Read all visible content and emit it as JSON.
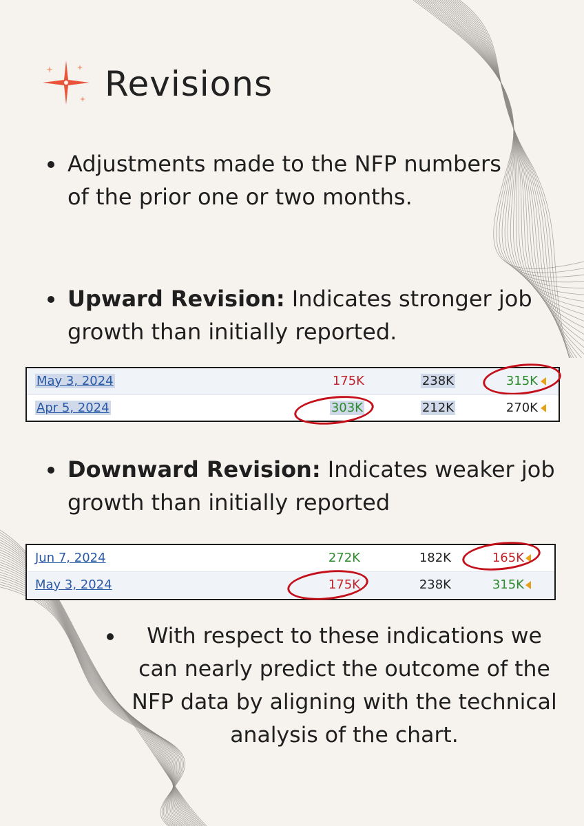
{
  "title": "Revisions",
  "bullets": {
    "b1": "Adjustments made to the NFP numbers of the prior one or two months.",
    "b2_bold": "Upward Revision:",
    "b2_text": " Indicates stronger job growth than initially reported.",
    "b3_bold": "Downward Revision:",
    "b3_text": " Indicates weaker job growth than initially reported",
    "b4": "With respect to these indications we can nearly predict the outcome of the NFP data by aligning with the technical analysis of the chart."
  },
  "upward_table": {
    "rows": [
      {
        "date": "May 3, 2024",
        "actual": "175K",
        "actual_color": "#c0242c",
        "forecast": "238K",
        "previous": "315K",
        "previous_color": "#2d8a2d"
      },
      {
        "date": "Apr 5, 2024",
        "actual": "303K",
        "actual_color": "#2d8a2d",
        "forecast": "212K",
        "previous": "270K",
        "previous_color": "#222222"
      }
    ]
  },
  "downward_table": {
    "rows": [
      {
        "date": "Jun 7, 2024",
        "actual": "272K",
        "actual_color": "#2d8a2d",
        "forecast": "182K",
        "previous": "165K",
        "previous_color": "#c0242c"
      },
      {
        "date": "May 3, 2024",
        "actual": "175K",
        "actual_color": "#c0242c",
        "forecast": "238K",
        "previous": "315K",
        "previous_color": "#2d8a2d"
      }
    ]
  },
  "icons": {
    "sparkle": "sparkle-icon",
    "revision_arrow": "revision-arrow-icon"
  },
  "colors": {
    "background": "#f6f3ef",
    "accent": "#e8553a",
    "circle": "#c4101b",
    "link": "#2a59a6"
  }
}
